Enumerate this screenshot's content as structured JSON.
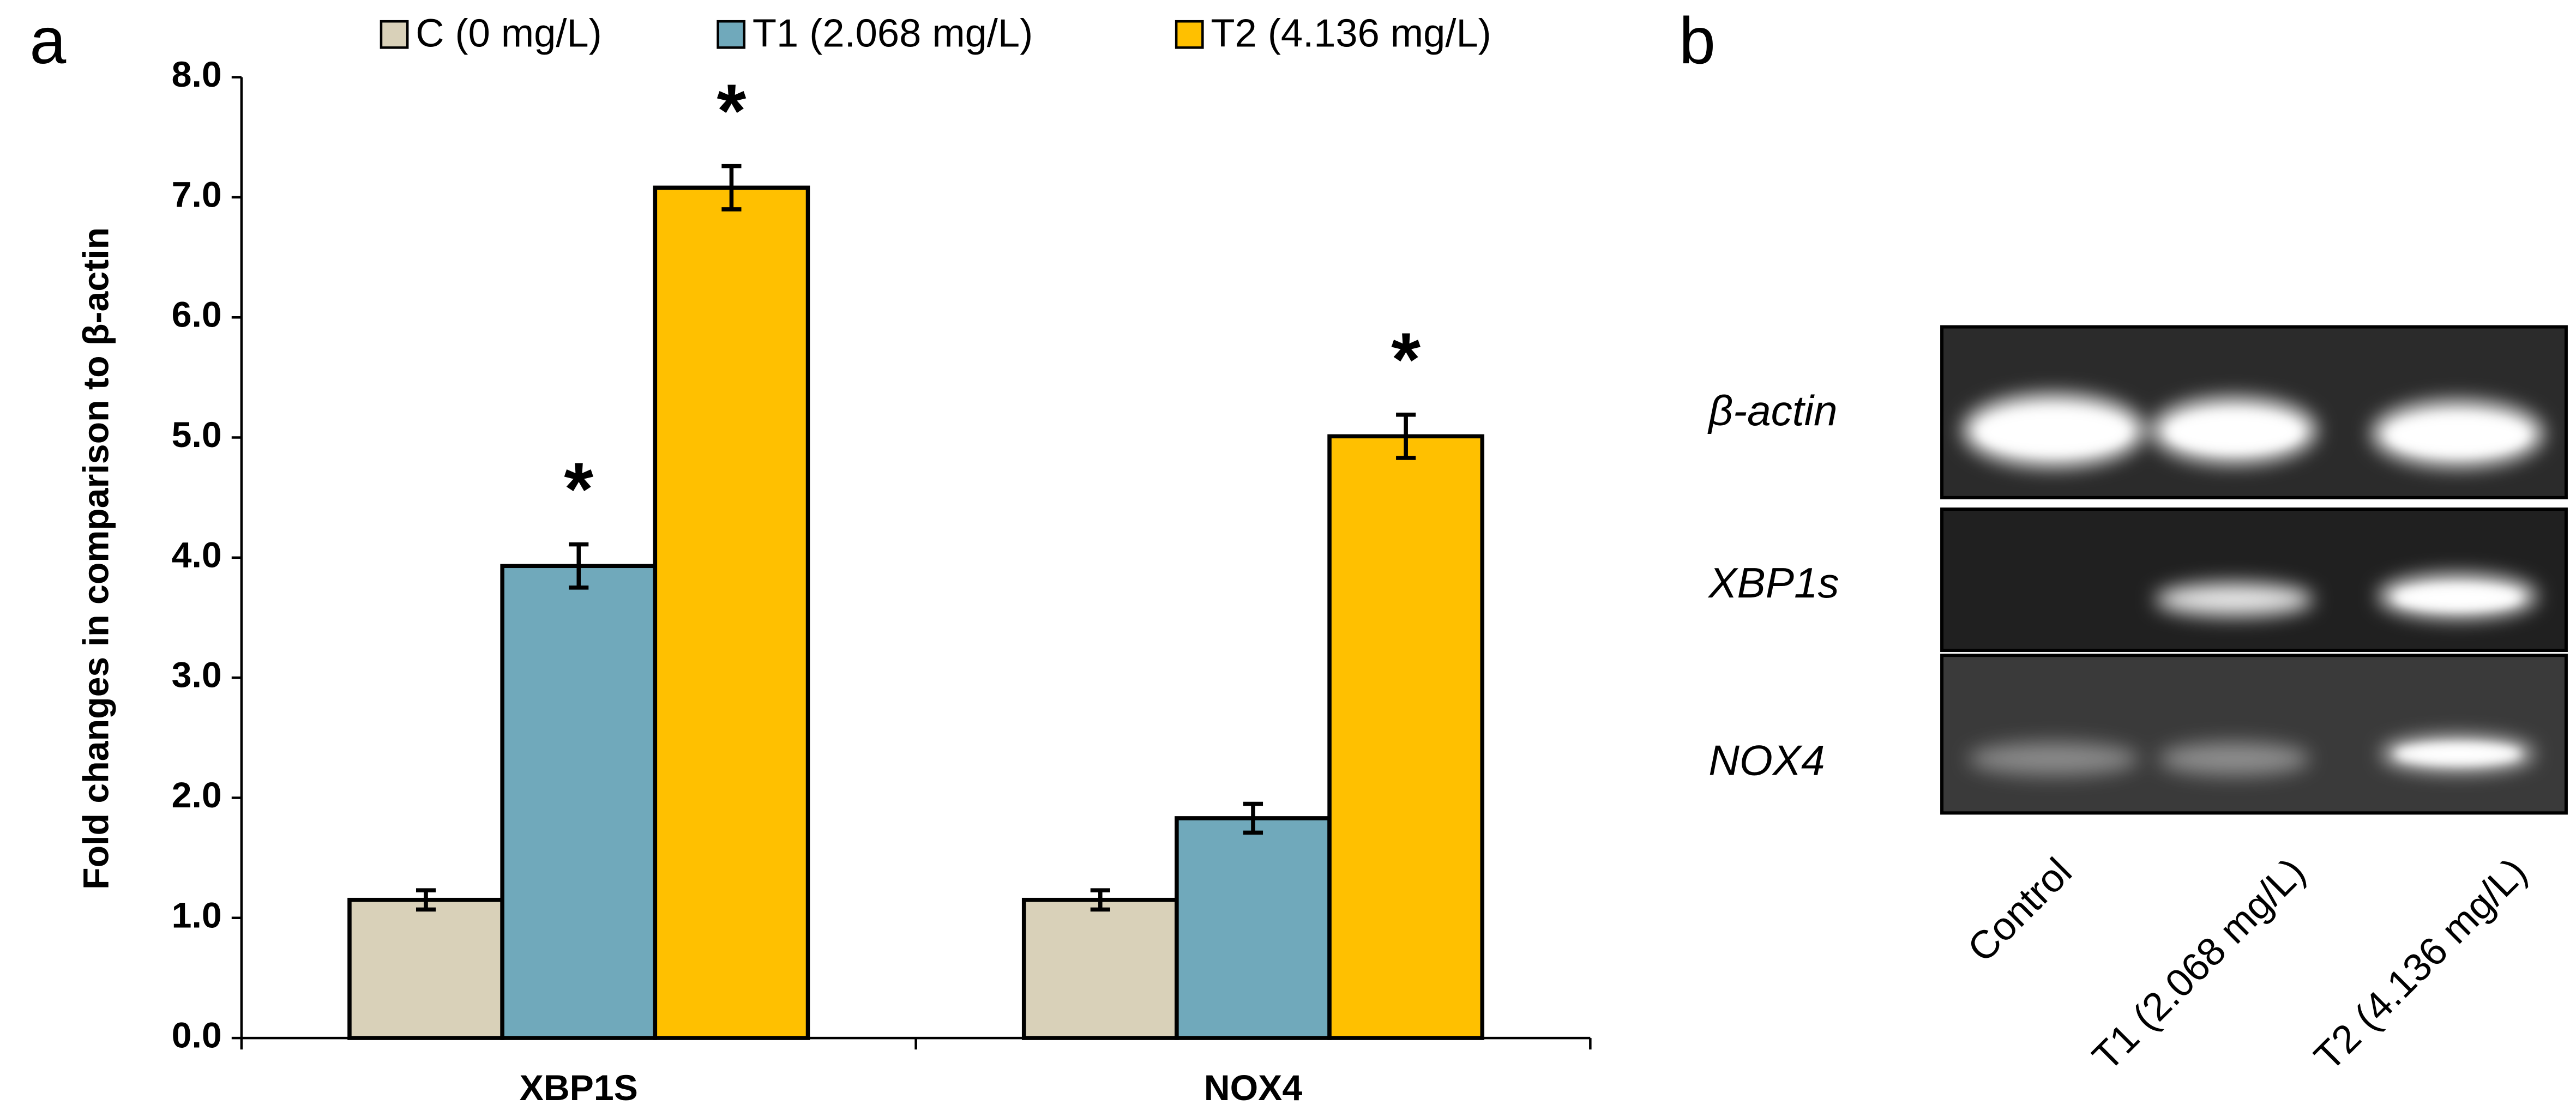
{
  "chart_data": {
    "type": "bar",
    "panel_label": "a",
    "y_label": "Fold changes in comparison to β-actin",
    "categories": [
      "XBP1S",
      "NOX4"
    ],
    "series": [
      {
        "name": "C (0 mg/L)",
        "color": "#d9d1b9",
        "values": [
          1.15,
          1.15
        ],
        "errors": [
          0.08,
          0.08
        ]
      },
      {
        "name": "T1 (2.068 mg/L)",
        "color": "#70a9bb",
        "values": [
          3.93,
          1.83
        ],
        "errors": [
          0.18,
          0.12
        ],
        "annotations": [
          "*",
          null
        ]
      },
      {
        "name": "T2 (4.136 mg/L)",
        "color": "#ffc000",
        "values": [
          7.08,
          5.01
        ],
        "errors": [
          0.18,
          0.18
        ],
        "annotations": [
          "*",
          "*"
        ]
      }
    ],
    "ylim": [
      0,
      8
    ],
    "yticks": [
      {
        "value": 0,
        "label": "0.0"
      },
      {
        "value": 1,
        "label": "1.0"
      },
      {
        "value": 2,
        "label": "2.0"
      },
      {
        "value": 3,
        "label": "3.0"
      },
      {
        "value": 4,
        "label": "4.0"
      },
      {
        "value": 5,
        "label": "5.0"
      },
      {
        "value": 6,
        "label": "6.0"
      },
      {
        "value": 7,
        "label": "7.0"
      },
      {
        "value": 8,
        "label": "8.0"
      }
    ],
    "grid": false,
    "legend": "top"
  },
  "gel": {
    "panel_label": "b",
    "rows": [
      "β-actin",
      "XBP1s",
      "NOX4"
    ],
    "lanes": [
      "Control",
      "T1 (2.068 mg/L)",
      "T2 (4.136 mg/L)"
    ]
  }
}
